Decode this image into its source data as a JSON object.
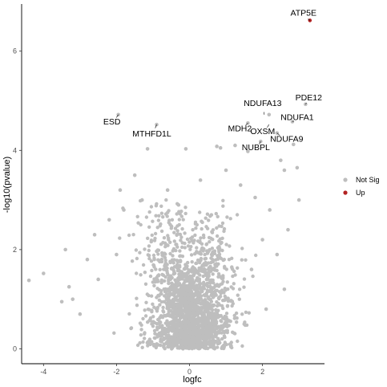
{
  "chart_data": {
    "type": "scatter",
    "title": "",
    "xlabel": "logfc",
    "ylabel": "-log10(pvalue)",
    "xlim": [
      -4.6,
      3.7
    ],
    "ylim": [
      -0.3,
      6.95
    ],
    "x_ticks": [
      "-4",
      "-2",
      "0",
      "2"
    ],
    "x_tick_values": [
      -4,
      -2,
      0,
      2
    ],
    "y_ticks": [
      "0",
      "2",
      "4",
      "6"
    ],
    "y_tick_values": [
      0,
      2,
      4,
      6
    ],
    "grid": false,
    "legend_position": "right",
    "legend": [
      {
        "label": "Not Sig",
        "color": "#bebebe"
      },
      {
        "label": "Up",
        "color": "#b22222"
      }
    ],
    "colors": {
      "not_sig": "#bebebe",
      "up": "#b22222",
      "axis": "#000000"
    },
    "series": [
      {
        "name": "Up",
        "points": [
          {
            "x": 3.3,
            "y": 6.62
          }
        ]
      },
      {
        "name": "Not Sig",
        "points": [
          {
            "x": -1.95,
            "y": 4.72
          },
          {
            "x": -0.9,
            "y": 4.52
          },
          {
            "x": 3.18,
            "y": 4.93
          },
          {
            "x": 2.18,
            "y": 4.72
          },
          {
            "x": 2.82,
            "y": 4.58
          },
          {
            "x": 1.6,
            "y": 4.55
          },
          {
            "x": 2.4,
            "y": 4.35
          },
          {
            "x": 1.95,
            "y": 4.18
          },
          {
            "x": 2.85,
            "y": 4.12
          },
          {
            "x": 1.6,
            "y": 3.98
          },
          {
            "x": -1.15,
            "y": 4.03
          },
          {
            "x": -0.1,
            "y": 4.03
          },
          {
            "x": 0.75,
            "y": 4.08
          },
          {
            "x": 0.85,
            "y": 4.05
          },
          {
            "x": 1.25,
            "y": 4.1
          },
          {
            "x": 2.95,
            "y": 3.65
          },
          {
            "x": 2.5,
            "y": 3.8
          },
          {
            "x": 2.6,
            "y": 3.6
          },
          {
            "x": -4.4,
            "y": 1.38
          },
          {
            "x": -4.0,
            "y": 1.52
          },
          {
            "x": -3.4,
            "y": 2.0
          },
          {
            "x": -3.2,
            "y": 1.0
          },
          {
            "x": -3.5,
            "y": 0.95
          },
          {
            "x": -3.0,
            "y": 0.7
          },
          {
            "x": -2.8,
            "y": 1.8
          },
          {
            "x": -2.6,
            "y": 2.3
          },
          {
            "x": -3.3,
            "y": 1.25
          },
          {
            "x": -1.9,
            "y": 3.2
          },
          {
            "x": -1.5,
            "y": 3.5
          },
          {
            "x": -1.8,
            "y": 2.8
          },
          {
            "x": -1.3,
            "y": 3.0
          },
          {
            "x": -2.2,
            "y": 2.6
          },
          {
            "x": 1.0,
            "y": 3.6
          },
          {
            "x": 1.4,
            "y": 3.3
          },
          {
            "x": 1.8,
            "y": 3.05
          },
          {
            "x": 2.2,
            "y": 2.8
          },
          {
            "x": 2.0,
            "y": 2.2
          },
          {
            "x": 2.4,
            "y": 1.9
          },
          {
            "x": 1.7,
            "y": 1.6
          },
          {
            "x": 2.7,
            "y": 2.4
          },
          {
            "x": 3.0,
            "y": 3.0
          },
          {
            "x": -0.6,
            "y": 3.2
          },
          {
            "x": -0.3,
            "y": 2.9
          },
          {
            "x": 0.3,
            "y": 3.4
          },
          {
            "x": 0.6,
            "y": 2.7
          },
          {
            "x": -2.5,
            "y": 1.4
          },
          {
            "x": -2.0,
            "y": 1.9
          },
          {
            "x": 1.5,
            "y": 0.5
          },
          {
            "x": 2.1,
            "y": 0.8
          },
          {
            "x": 2.6,
            "y": 1.2
          }
        ]
      }
    ],
    "background_cloud": {
      "series": "Not Sig",
      "description_free": true,
      "center_x": 0.0,
      "spread_x": 0.55,
      "y_min": 0.0,
      "y_max": 3.0,
      "count": 2200
    },
    "annotations": [
      {
        "text": "ATP5E",
        "x": 3.3,
        "y": 6.62
      },
      {
        "text": "PDE12",
        "x": 3.18,
        "y": 4.93
      },
      {
        "text": "NDUFA13",
        "x": 2.05,
        "y": 4.72
      },
      {
        "text": "ESD",
        "x": -1.95,
        "y": 4.72
      },
      {
        "text": "NDUFA1",
        "x": 2.82,
        "y": 4.58
      },
      {
        "text": "OXSM",
        "x": 2.18,
        "y": 4.52
      },
      {
        "text": "MTHFD1L",
        "x": -0.9,
        "y": 4.52
      },
      {
        "text": "MDH2",
        "x": 1.6,
        "y": 4.55
      },
      {
        "text": "NDUFA9",
        "x": 2.4,
        "y": 4.35
      },
      {
        "text": "NUBPL",
        "x": 1.95,
        "y": 4.18
      }
    ]
  }
}
